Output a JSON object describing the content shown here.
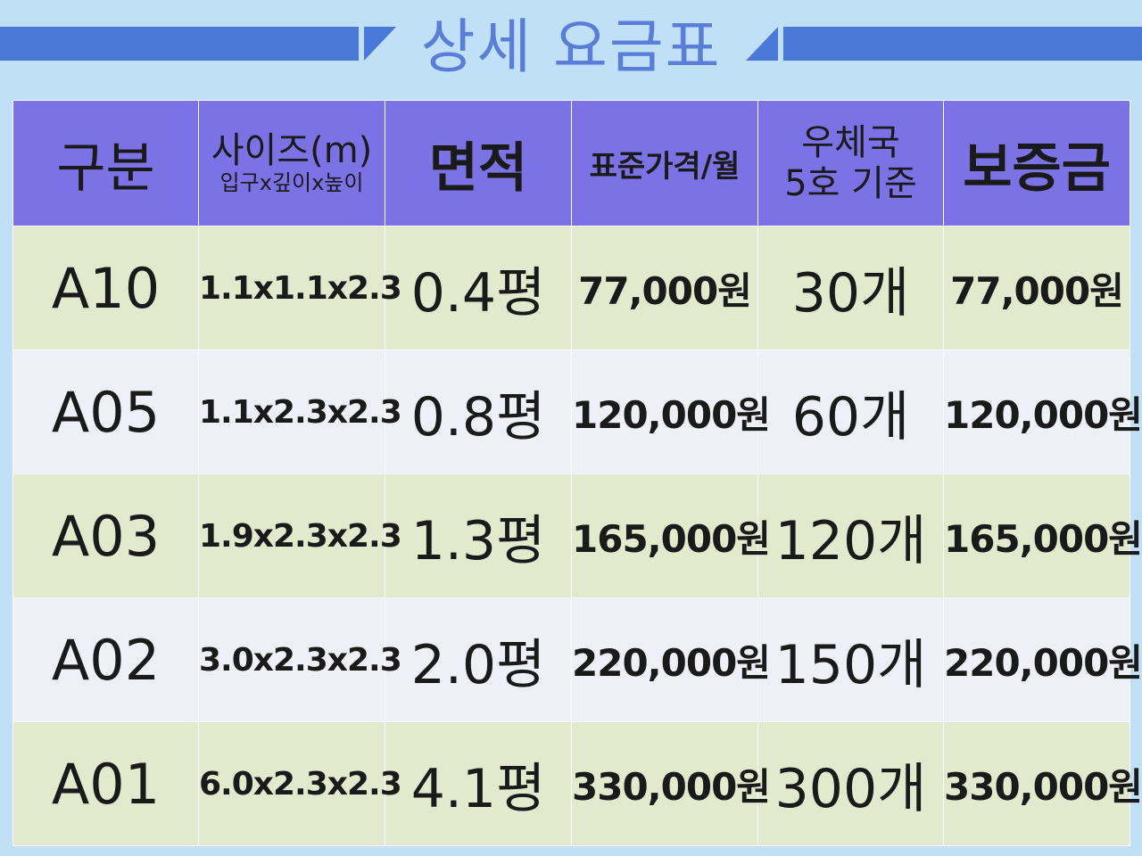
{
  "title": "상세 요금표",
  "colors": {
    "header_bg": "#7b72e6",
    "row_odd": "#e3e9cc",
    "row_even": "#efeff7",
    "band": "#4a78d6",
    "title_text": "#5a7ed8",
    "page_bg": "#bfe0f6"
  },
  "headers": {
    "category": "구분",
    "size_line1": "사이즈(m)",
    "size_line2": "입구x깊이x높이",
    "area": "면적",
    "price": "표준가격/월",
    "box_line1": "우체국",
    "box_line2": "5호 기준",
    "deposit": "보증금"
  },
  "rows": [
    {
      "code": "A10",
      "size": "1.1x1.1x2.3",
      "area": "0.4평",
      "price": "77,000원",
      "boxes": "30개",
      "deposit": "77,000원"
    },
    {
      "code": "A05",
      "size": "1.1x2.3x2.3",
      "area": "0.8평",
      "price": "120,000원",
      "boxes": "60개",
      "deposit": "120,000원"
    },
    {
      "code": "A03",
      "size": "1.9x2.3x2.3",
      "area": "1.3평",
      "price": "165,000원",
      "boxes": "120개",
      "deposit": "165,000원"
    },
    {
      "code": "A02",
      "size": "3.0x2.3x2.3",
      "area": "2.0평",
      "price": "220,000원",
      "boxes": "150개",
      "deposit": "220,000원"
    },
    {
      "code": "A01",
      "size": "6.0x2.3x2.3",
      "area": "4.1평",
      "price": "330,000원",
      "boxes": "300개",
      "deposit": "330,000원"
    }
  ]
}
